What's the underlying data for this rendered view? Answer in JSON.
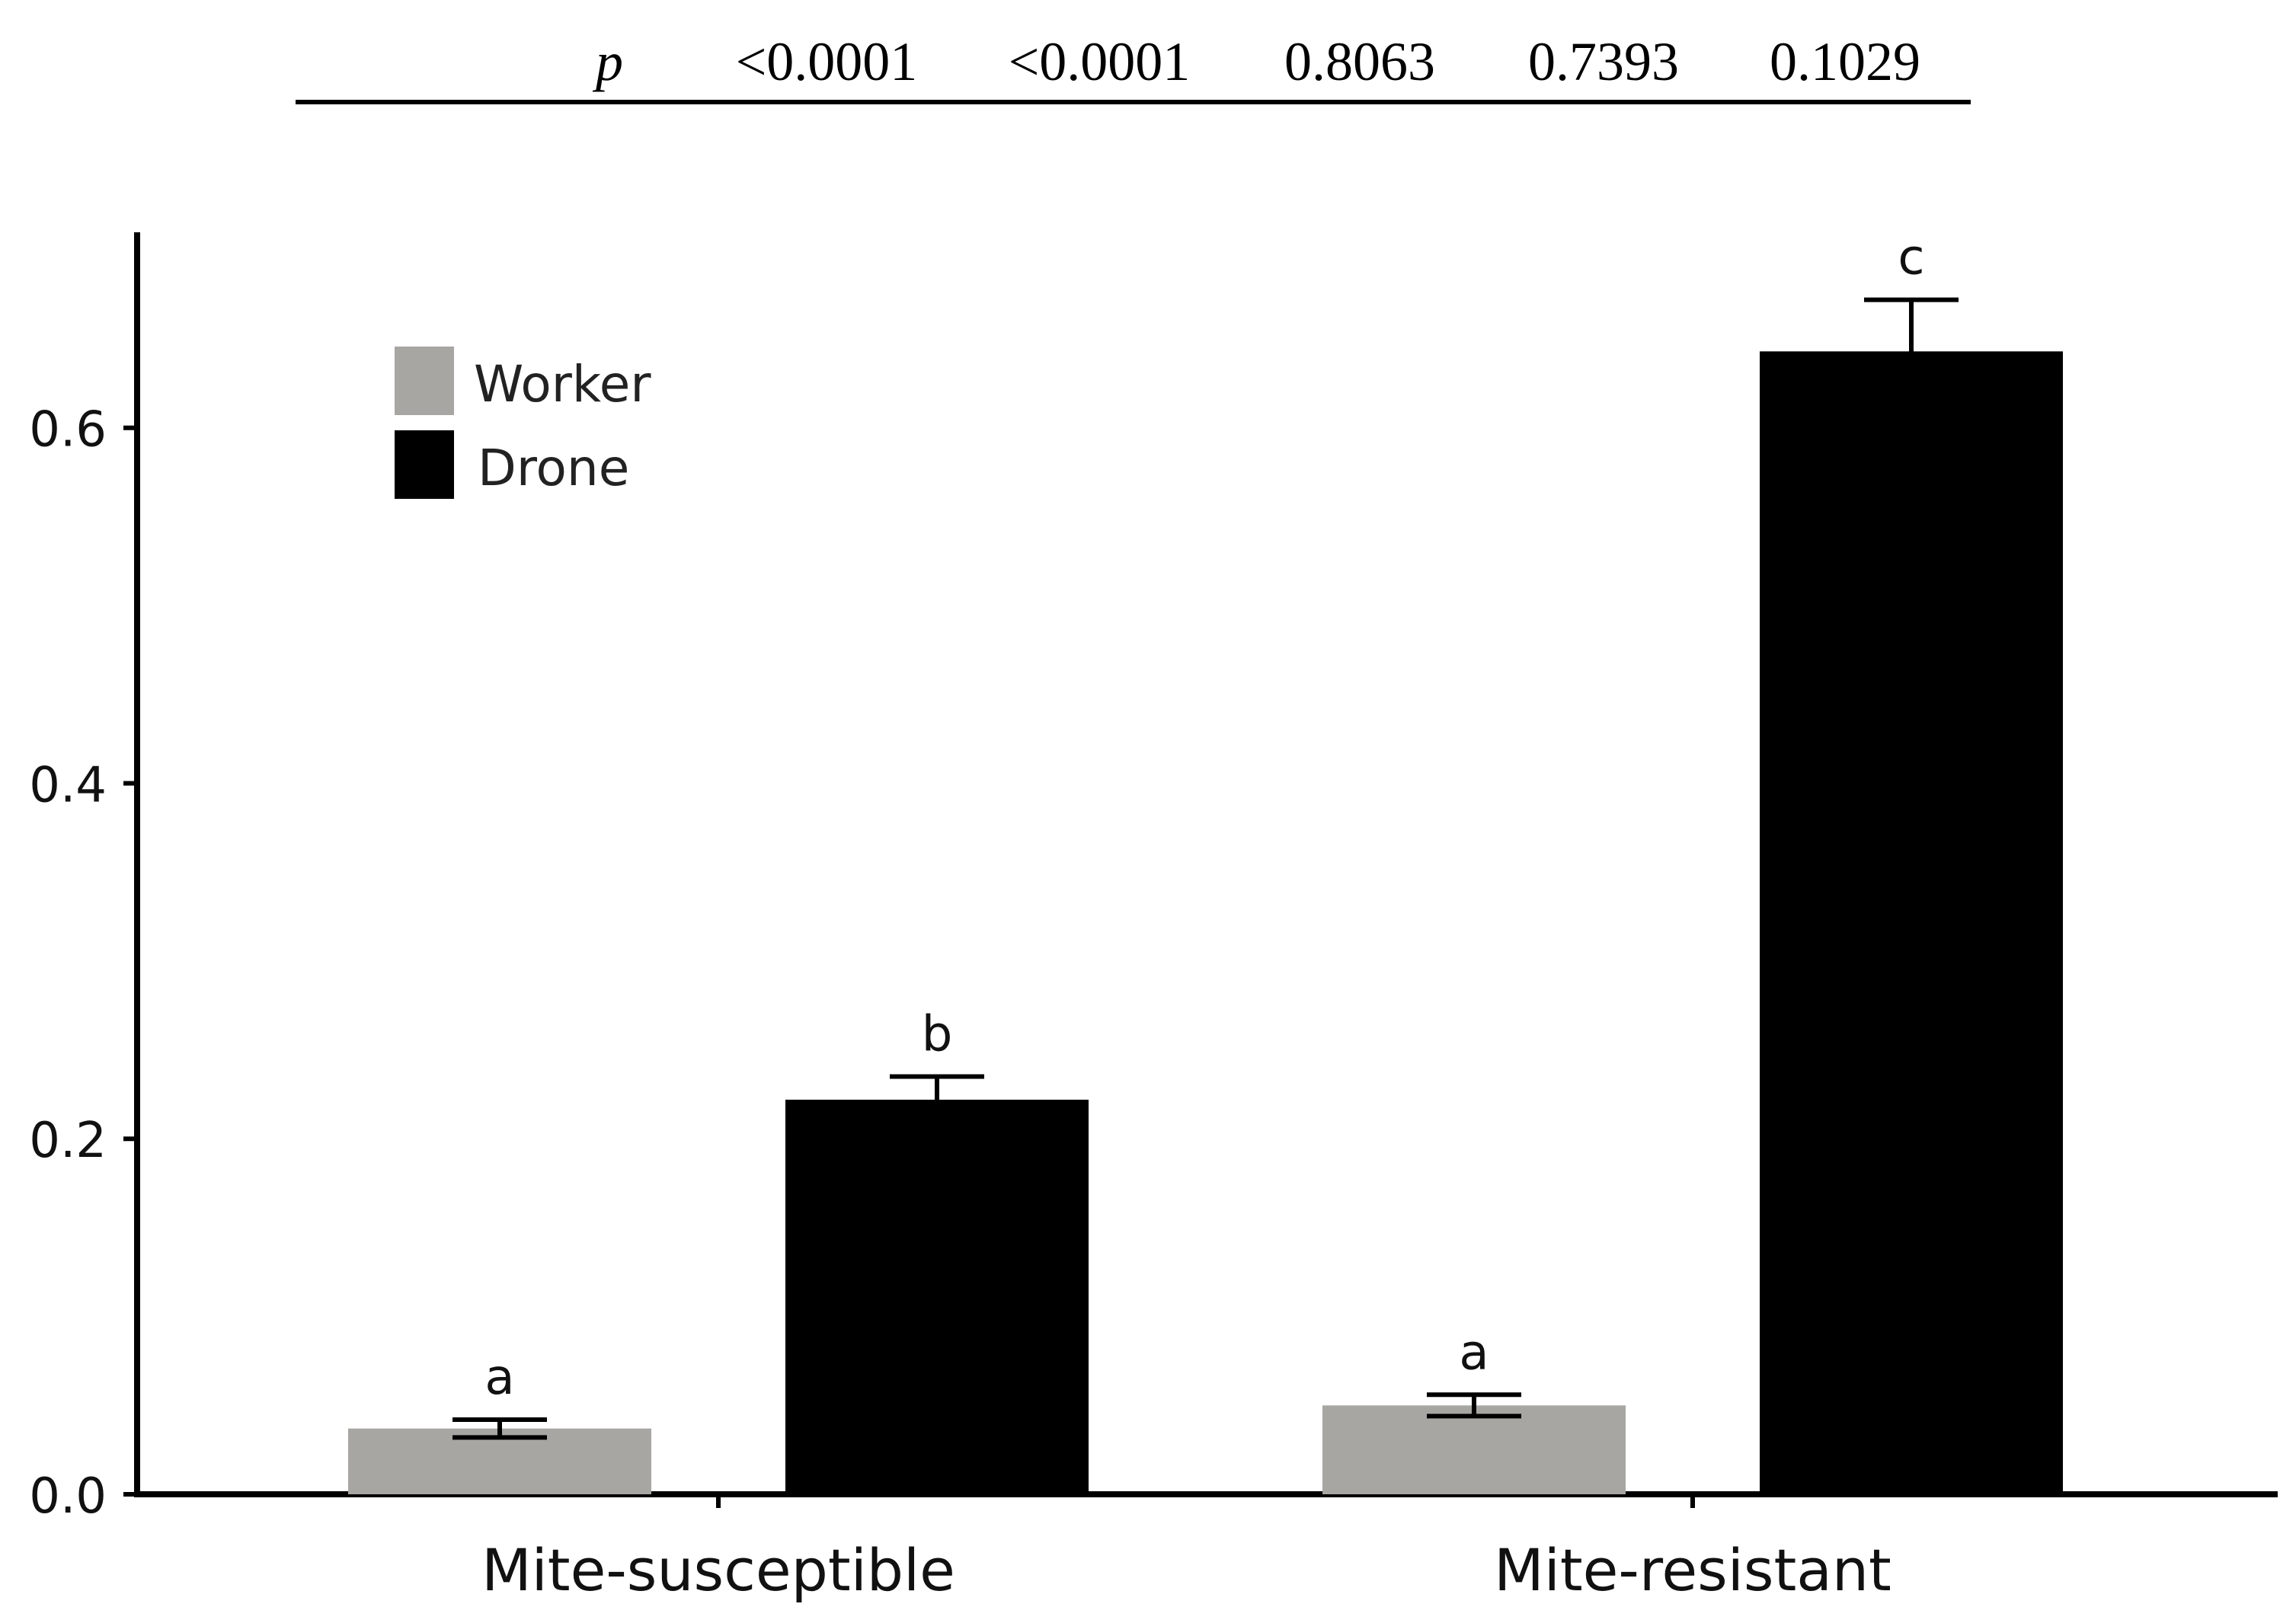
{
  "p_row": {
    "label": "p",
    "values": [
      "<0.0001",
      "<0.0001",
      "0.8063",
      "0.7393",
      "0.1029"
    ]
  },
  "chart_data": {
    "type": "bar",
    "categories": [
      "Mite-susceptible",
      "Mite-resistant"
    ],
    "series": [
      {
        "name": "Worker",
        "color": "#a8a6a3",
        "values": [
          0.037,
          0.05
        ],
        "errors": [
          0.005,
          0.006
        ],
        "letters": [
          "a",
          "a"
        ]
      },
      {
        "name": "Drone",
        "color": "#000000",
        "values": [
          0.222,
          0.643
        ],
        "errors": [
          0.013,
          0.029
        ],
        "letters": [
          "b",
          "c"
        ]
      }
    ],
    "yticks": [
      "0.0",
      "0.2",
      "0.4",
      "0.6"
    ],
    "ylim": [
      0,
      0.71
    ],
    "legend": "top-left",
    "grid": false
  }
}
